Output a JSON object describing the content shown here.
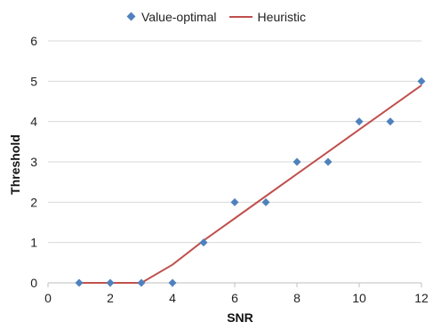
{
  "chart_data": {
    "type": "scatter",
    "title": "",
    "xlabel": "SNR",
    "ylabel": "Threshold",
    "xlim": [
      0,
      12
    ],
    "ylim": [
      0,
      6
    ],
    "x_ticks": [
      0,
      2,
      4,
      6,
      8,
      10,
      12
    ],
    "y_ticks": [
      0,
      1,
      2,
      3,
      4,
      5,
      6
    ],
    "grid": "horizontal major gridlines",
    "legend_position": "top",
    "series": [
      {
        "name": "Value-optimal",
        "style": "markers",
        "marker": "diamond",
        "color": "#4f81bd",
        "x": [
          1,
          2,
          3,
          4,
          5,
          6,
          7,
          8,
          9,
          10,
          11,
          12
        ],
        "y": [
          0,
          0,
          0,
          0,
          1,
          2,
          2,
          3,
          3,
          4,
          4,
          5
        ]
      },
      {
        "name": "Heuristic",
        "style": "line",
        "color": "#c0504d",
        "x": [
          1,
          2,
          3,
          4,
          5,
          6,
          7,
          8,
          9,
          10,
          11,
          12
        ],
        "y": [
          0,
          0,
          0,
          0.45,
          1.05,
          1.6,
          2.15,
          2.7,
          3.25,
          3.8,
          4.35,
          4.9
        ]
      }
    ]
  }
}
